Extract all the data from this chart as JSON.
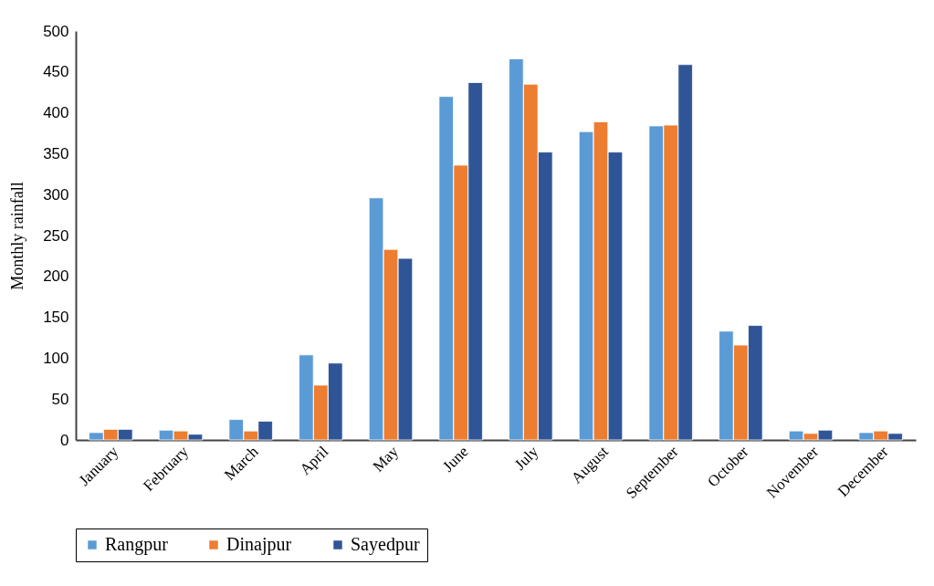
{
  "chart_data": {
    "type": "bar",
    "ylabel": "Monthly rainfall",
    "categories": [
      "January",
      "February",
      "March",
      "April",
      "May",
      "June",
      "July",
      "August",
      "September",
      "October",
      "November",
      "December"
    ],
    "series": [
      {
        "name": "Rangpur",
        "color": "#5b9bd5",
        "values": [
          9,
          12,
          25,
          104,
          296,
          420,
          466,
          377,
          384,
          133,
          11,
          9
        ]
      },
      {
        "name": "Dinajpur",
        "color": "#ed7d31",
        "values": [
          13,
          11,
          11,
          67,
          233,
          336,
          435,
          389,
          385,
          116,
          8,
          11
        ]
      },
      {
        "name": "Sayedpur",
        "color": "#2f5597",
        "values": [
          13,
          7,
          23,
          94,
          222,
          437,
          352,
          352,
          459,
          140,
          12,
          8
        ]
      }
    ],
    "ylim": [
      0,
      500
    ],
    "yticks": [
      0,
      50,
      100,
      150,
      200,
      250,
      300,
      350,
      400,
      450,
      500
    ],
    "grid": false,
    "legend": "bottom"
  }
}
